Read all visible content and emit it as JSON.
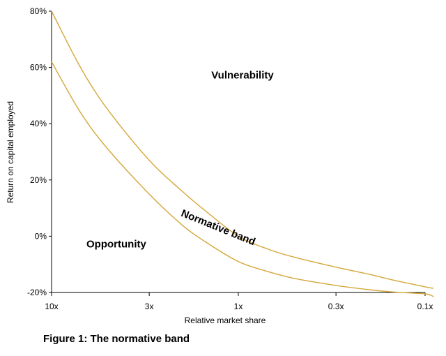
{
  "caption": "Figure 1: The normative band",
  "chart_data": {
    "type": "line",
    "title": "",
    "xlabel": "Relative market share",
    "ylabel": "Return on capital employed",
    "x_scale": "log",
    "x_reversed": true,
    "x_ticks": [
      {
        "value": 10,
        "label": "10x"
      },
      {
        "value": 3,
        "label": "3x"
      },
      {
        "value": 1,
        "label": "1x"
      },
      {
        "value": 0.3,
        "label": "0.3x"
      },
      {
        "value": 0.1,
        "label": "0.1x"
      }
    ],
    "y_ticks": [
      {
        "value": 80,
        "label": "80%"
      },
      {
        "value": 60,
        "label": "60%"
      },
      {
        "value": 40,
        "label": "40%"
      },
      {
        "value": 20,
        "label": "20%"
      },
      {
        "value": 0,
        "label": "0%"
      },
      {
        "value": -20,
        "label": "-20%"
      }
    ],
    "ylim": [
      -20,
      80
    ],
    "xlim": [
      10,
      0.1
    ],
    "grid": false,
    "line_color": "#D4A73A",
    "series": [
      {
        "x": [
          10,
          7,
          5,
          3,
          2,
          1.5,
          1,
          0.7,
          0.5,
          0.3,
          0.2,
          0.15,
          0.1,
          0.09
        ],
        "values": [
          80,
          60,
          45,
          27,
          16,
          9,
          0,
          -4.5,
          -7.5,
          -11,
          -13.5,
          -15.5,
          -18,
          -18.5
        ]
      },
      {
        "x": [
          10,
          7,
          5,
          3,
          2,
          1.5,
          1,
          0.7,
          0.5,
          0.3,
          0.2,
          0.15,
          0.1,
          0.09
        ],
        "values": [
          62,
          44,
          31,
          15,
          4,
          -2,
          -9,
          -12.5,
          -15,
          -17.5,
          -19,
          -19.8,
          -20.5,
          -21.5
        ]
      }
    ],
    "annotations": [
      {
        "text": "Vulnerability",
        "x": 0.95,
        "y": 56,
        "rotation": 0
      },
      {
        "text": "Normative band",
        "x": 1.3,
        "y": 2,
        "rotation": 22
      },
      {
        "text": "Opportunity",
        "x": 4.5,
        "y": -4,
        "rotation": 0
      }
    ]
  }
}
